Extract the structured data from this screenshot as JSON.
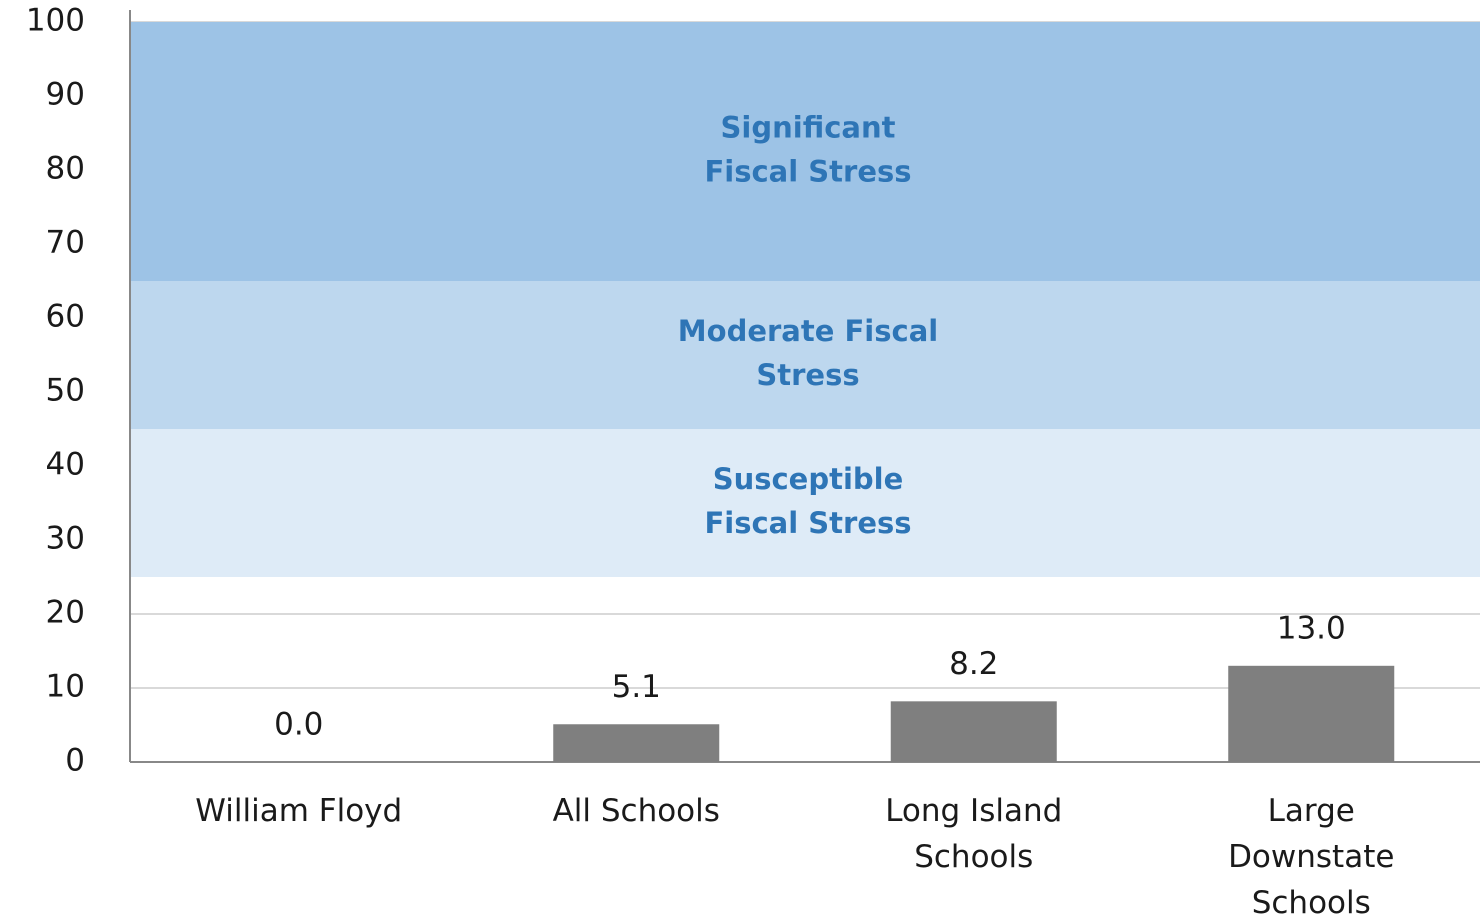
{
  "chart_data": {
    "type": "bar",
    "categories": [
      [
        "William Floyd"
      ],
      [
        "All Schools"
      ],
      [
        "Long Island",
        "Schools"
      ],
      [
        "Large",
        "Downstate",
        "Schools"
      ]
    ],
    "values": [
      0,
      5.1,
      8.2,
      13
    ],
    "value_labels": [
      "0.0",
      "5.1",
      "8.2",
      "13.0"
    ],
    "color": "#7f7f7f",
    "ylim": [
      0,
      100
    ],
    "yticks": [
      0,
      10,
      20,
      30,
      40,
      50,
      60,
      70,
      80,
      90,
      100
    ],
    "grid": true,
    "bands": [
      {
        "label": [
          "Susceptible",
          "Fiscal Stress"
        ],
        "from": 25,
        "to": 45,
        "color": "#deebf7"
      },
      {
        "label": [
          "Moderate Fiscal",
          "Stress"
        ],
        "from": 45,
        "to": 65,
        "color": "#bdd7ee"
      },
      {
        "label": [
          "Significant",
          "Fiscal Stress"
        ],
        "from": 65,
        "to": 100,
        "color": "#9dc3e6"
      }
    ]
  }
}
